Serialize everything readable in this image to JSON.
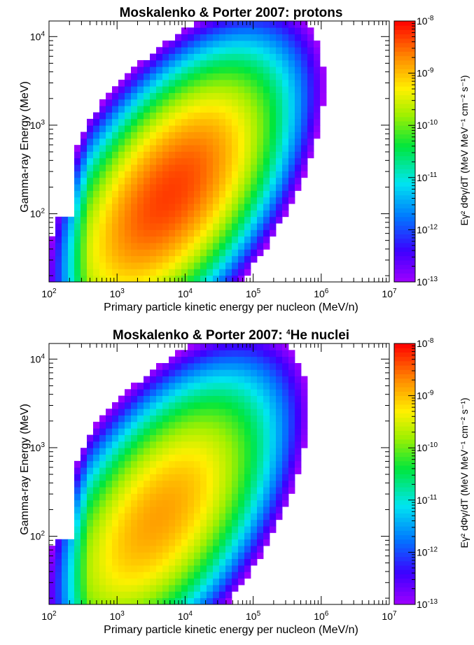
{
  "chart_data": [
    {
      "type": "heatmap",
      "title": "Moskalenko & Porter 2007: protons",
      "xlabel": "Primary particle kinetic energy per nucleon (MeV/n)",
      "ylabel": "Gamma-ray Energy (MeV)",
      "colorbar_label": "Eγ² dΦγ/dT (MeV MeV⁻¹ cm⁻² s⁻¹)",
      "x_scale": "log",
      "y_scale": "log",
      "z_scale": "log",
      "xlim": [
        100,
        10000000
      ],
      "ylim": [
        17,
        15000
      ],
      "zlim": [
        1e-13,
        1e-08
      ],
      "x_ticks": [
        "10^2",
        "10^3",
        "10^4",
        "10^5",
        "10^6",
        "10^7"
      ],
      "y_ticks": [
        "10^2",
        "10^3",
        "10^4"
      ],
      "z_ticks": [
        "10^-8",
        "10^-9",
        "10^-10",
        "10^-11",
        "10^-12",
        "10^-13"
      ],
      "peak": {
        "x": 5000,
        "y": 150,
        "z": 5e-09
      },
      "spread": {
        "lx_sigma": 0.78,
        "ly_sigma": 0.6,
        "ridge_slope": 0.55
      }
    },
    {
      "type": "heatmap",
      "title": "Moskalenko & Porter 2007: 4He nuclei",
      "title_prefix": "Moskalenko & Porter 2007: ",
      "title_sup": "4",
      "title_suffix": "He nuclei",
      "xlabel": "Primary particle kinetic energy per nucleon (MeV/n)",
      "ylabel": "Gamma-ray Energy (MeV)",
      "colorbar_label": "Eγ² dΦγ/dT (MeV MeV⁻¹ cm⁻² s⁻¹)",
      "x_scale": "log",
      "y_scale": "log",
      "z_scale": "log",
      "xlim": [
        100,
        10000000
      ],
      "ylim": [
        17,
        15000
      ],
      "zlim": [
        1e-13,
        1e-08
      ],
      "x_ticks": [
        "10^2",
        "10^3",
        "10^4",
        "10^5",
        "10^6",
        "10^7"
      ],
      "y_ticks": [
        "10^2",
        "10^3",
        "10^4"
      ],
      "z_ticks": [
        "10^-8",
        "10^-9",
        "10^-10",
        "10^-11",
        "10^-12",
        "10^-13"
      ],
      "peak": {
        "x": 3500,
        "y": 150,
        "z": 1.5e-09
      },
      "spread": {
        "lx_sigma": 0.8,
        "ly_sigma": 0.62,
        "ridge_slope": 0.55
      }
    }
  ]
}
